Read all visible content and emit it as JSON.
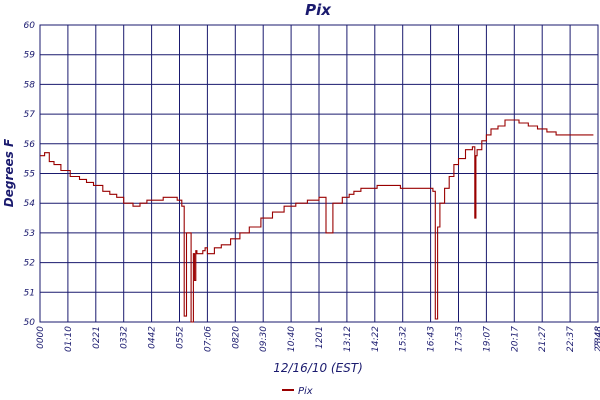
{
  "chart_data": {
    "type": "line",
    "title": "Pix",
    "xlabel": "12/16/10 (EST)",
    "ylabel": "Degrees F",
    "ylim": [
      50,
      60
    ],
    "yticks": [
      "50",
      "51",
      "52",
      "53",
      "54",
      "55",
      "56",
      "57",
      "58",
      "59",
      "60"
    ],
    "xticks": [
      "0000",
      "01:10",
      "0221",
      "0332",
      "0442",
      "0552",
      "07:06",
      "0820",
      "09:30",
      "10:40",
      "1201",
      "13:12",
      "14:22",
      "15:32",
      "16:43",
      "17:53",
      "19:07",
      "20:17",
      "21:27",
      "22:37",
      "2348",
      "23:48"
    ],
    "grid": true,
    "legend_position": "bottom-center",
    "series": [
      {
        "name": "Pix",
        "color": "#990000",
        "x": [
          0.0,
          0.2,
          0.4,
          0.6,
          0.9,
          1.3,
          1.7,
          2.0,
          2.3,
          2.7,
          3.0,
          3.3,
          3.6,
          4.0,
          4.3,
          4.6,
          5.0,
          5.3,
          5.6,
          5.9,
          6.1,
          6.2,
          6.3,
          6.4,
          6.5,
          6.6,
          6.65,
          6.7,
          6.75,
          6.8,
          6.9,
          7.0,
          7.05,
          7.1,
          7.2,
          7.5,
          7.8,
          8.2,
          8.6,
          9.0,
          9.5,
          10.0,
          10.5,
          11.0,
          11.5,
          12.0,
          12.2,
          12.3,
          12.6,
          13.0,
          13.3,
          13.5,
          13.6,
          13.7,
          13.8,
          14.0,
          14.5,
          15.0,
          15.5,
          16.0,
          16.5,
          16.8,
          16.9,
          17.0,
          17.1,
          17.2,
          17.4,
          17.6,
          17.8,
          18.0,
          18.3,
          18.6,
          18.7,
          18.75,
          18.8,
          19.0,
          19.2,
          19.4,
          19.7,
          20.0,
          20.3,
          20.6,
          21.0,
          21.4,
          21.8,
          22.2,
          22.6,
          23.0,
          23.5,
          23.8
        ],
        "values": [
          55.6,
          55.7,
          55.4,
          55.3,
          55.1,
          54.9,
          54.8,
          54.7,
          54.6,
          54.4,
          54.3,
          54.2,
          54.0,
          53.9,
          54.0,
          54.1,
          54.1,
          54.2,
          54.2,
          54.1,
          53.9,
          50.2,
          53.0,
          53.0,
          50.0,
          52.3,
          51.4,
          52.4,
          52.3,
          52.3,
          52.3,
          52.4,
          52.4,
          52.5,
          52.3,
          52.5,
          52.6,
          52.8,
          53.0,
          53.2,
          53.5,
          53.7,
          53.9,
          54.0,
          54.1,
          54.2,
          54.2,
          53.0,
          54.0,
          54.2,
          54.3,
          54.4,
          54.4,
          54.4,
          54.5,
          54.5,
          54.6,
          54.6,
          54.5,
          54.5,
          54.5,
          54.5,
          54.4,
          50.1,
          53.2,
          54.0,
          54.5,
          54.9,
          55.3,
          55.5,
          55.8,
          55.9,
          53.5,
          55.6,
          55.8,
          56.1,
          56.3,
          56.5,
          56.6,
          56.8,
          56.8,
          56.7,
          56.6,
          56.5,
          56.4,
          56.3,
          56.3,
          56.3,
          56.3,
          56.3
        ]
      }
    ]
  }
}
